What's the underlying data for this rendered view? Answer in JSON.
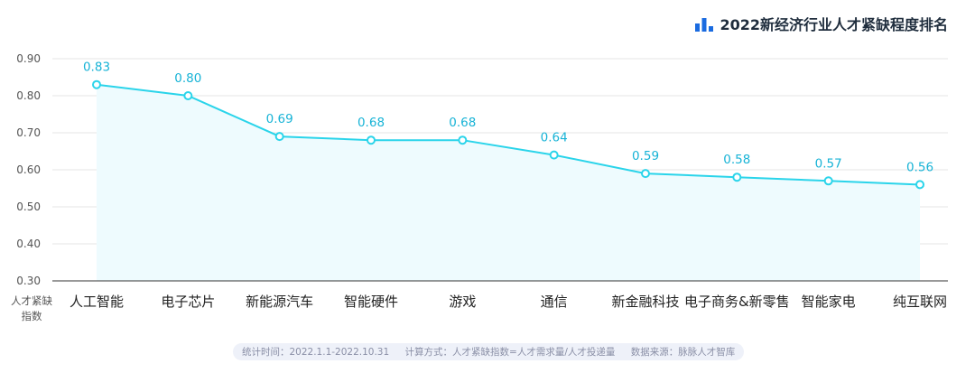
{
  "title": "2022新经济行业人才紧缺程度排名",
  "colors": {
    "line": "#2ad4ea",
    "fill": "#eefbfe",
    "title_icon": "#1a6be0",
    "label": "#17b3d6"
  },
  "chart_data": {
    "type": "line",
    "title": "2022新经济行业人才紧缺程度排名",
    "ylabel": "人才紧缺指数",
    "xlabel": "",
    "ylim": [
      0.3,
      0.9
    ],
    "yticks": [
      "0.30",
      "0.40",
      "0.50",
      "0.60",
      "0.70",
      "0.80",
      "0.90"
    ],
    "grid": true,
    "categories": [
      "人工智能",
      "电子芯片",
      "新能源汽车",
      "智能硬件",
      "游戏",
      "通信",
      "新金融科技",
      "电子商务&新零售",
      "智能家电",
      "纯互联网"
    ],
    "values": [
      0.83,
      0.8,
      0.69,
      0.68,
      0.68,
      0.64,
      0.59,
      0.58,
      0.57,
      0.56
    ]
  },
  "footer": {
    "stat_time": "统计时间：2022.1.1-2022.10.31",
    "method": "计算方式：人才紧缺指数=人才需求量/人才投递量",
    "source": "数据来源：脉脉人才智库"
  }
}
